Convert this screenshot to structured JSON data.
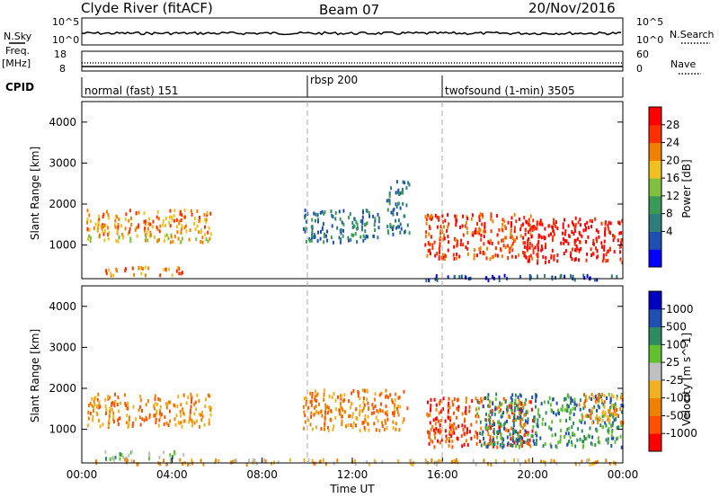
{
  "header": {
    "station": "Clyde River (fitACF)",
    "beam": "Beam 07",
    "date": "20/Nov/2016"
  },
  "top_panels": {
    "nsky_label": "N.Sky",
    "nsky_ticks": [
      "10^5",
      "10^0"
    ],
    "nsearch_label": "N.Search",
    "nsearch_ticks": [
      "10^5",
      "10^0"
    ],
    "freq_label": "Freq.",
    "freq_unit": "[MHz]",
    "freq_ticks": [
      "18",
      "8"
    ],
    "nave_label": "Nave",
    "nave_ticks": [
      "60",
      "0"
    ],
    "cpid_label": "CPID",
    "cpid_segments": [
      {
        "name": "normal (fast) 151",
        "start": 0,
        "end": 10
      },
      {
        "name": "rbsp 200",
        "start": 10,
        "end": 16
      },
      {
        "name": "twofsound (1-min) 3505",
        "start": 16,
        "end": 24
      }
    ]
  },
  "chart_data": [
    {
      "type": "heatmap",
      "quantity": "power",
      "ylabel": "Slant Range [km]",
      "ylim": [
        180,
        4500
      ],
      "yticks": [
        1000,
        2000,
        3000,
        4000
      ],
      "xlim": [
        0,
        24
      ],
      "colorbar_label": "Power [dB]",
      "colorbar_ticks": [
        "28",
        "24",
        "20",
        "16",
        "12",
        "8",
        "4"
      ],
      "colors": [
        "#0000ff",
        "#1f4fb0",
        "#2e7d7d",
        "#3a9a55",
        "#80c040",
        "#f0c020",
        "#f08000",
        "#ff3000",
        "#ff0000"
      ],
      "blobs": [
        {
          "t0": 0.2,
          "t1": 5.7,
          "r0": 1300,
          "r1": 1900,
          "level": 6
        },
        {
          "t0": 0.2,
          "t1": 5.7,
          "r0": 1100,
          "r1": 1300,
          "level": 5
        },
        {
          "t0": 1.0,
          "t1": 4.5,
          "r0": 300,
          "r1": 500,
          "level": 6
        },
        {
          "t0": 9.8,
          "t1": 13.2,
          "r0": 1100,
          "r1": 1900,
          "level": 2
        },
        {
          "t0": 13.5,
          "t1": 14.5,
          "r0": 1300,
          "r1": 2600,
          "level": 2
        },
        {
          "t0": 15.2,
          "t1": 20.0,
          "r0": 700,
          "r1": 1800,
          "level": 7
        },
        {
          "t0": 19.5,
          "t1": 24.0,
          "r0": 600,
          "r1": 1700,
          "level": 8
        },
        {
          "t0": 15.0,
          "t1": 24.0,
          "r0": 180,
          "r1": 300,
          "level": 1
        }
      ]
    },
    {
      "type": "heatmap",
      "quantity": "velocity",
      "ylabel": "Slant Range [km]",
      "ylim": [
        180,
        4500
      ],
      "yticks": [
        1000,
        2000,
        3000,
        4000
      ],
      "xlim": [
        0,
        24
      ],
      "xticks": [
        "00:00",
        "04:00",
        "08:00",
        "12:00",
        "16:00",
        "20:00",
        "00:00"
      ],
      "xlabel": "Time UT",
      "colorbar_label": "Velocity [m s^-1]",
      "colorbar_ticks": [
        "1000",
        "500",
        "100",
        "25",
        "-25",
        "-100",
        "-500",
        "-1000"
      ],
      "colors": [
        "#ff0000",
        "#ff5000",
        "#f08000",
        "#f0b020",
        "#c0c0c0",
        "#60c030",
        "#2e8a60",
        "#1f4fb0",
        "#0000c0"
      ],
      "blobs": [
        {
          "t0": 0.2,
          "t1": 5.7,
          "r0": 1100,
          "r1": 1900,
          "level": 2
        },
        {
          "t0": 1.0,
          "t1": 4.5,
          "r0": 300,
          "r1": 500,
          "level": 5
        },
        {
          "t0": 9.8,
          "t1": 14.5,
          "r0": 1000,
          "r1": 2000,
          "level": 2
        },
        {
          "t0": 15.2,
          "t1": 20.0,
          "r0": 600,
          "r1": 1800,
          "level": 1
        },
        {
          "t0": 17.5,
          "t1": 24.0,
          "r0": 600,
          "r1": 1900,
          "level": 6
        },
        {
          "t0": 22.0,
          "t1": 24.0,
          "r0": 1200,
          "r1": 1900,
          "level": 2
        },
        {
          "t0": 0.0,
          "t1": 24.0,
          "r0": 180,
          "r1": 300,
          "level": 3
        }
      ]
    }
  ]
}
